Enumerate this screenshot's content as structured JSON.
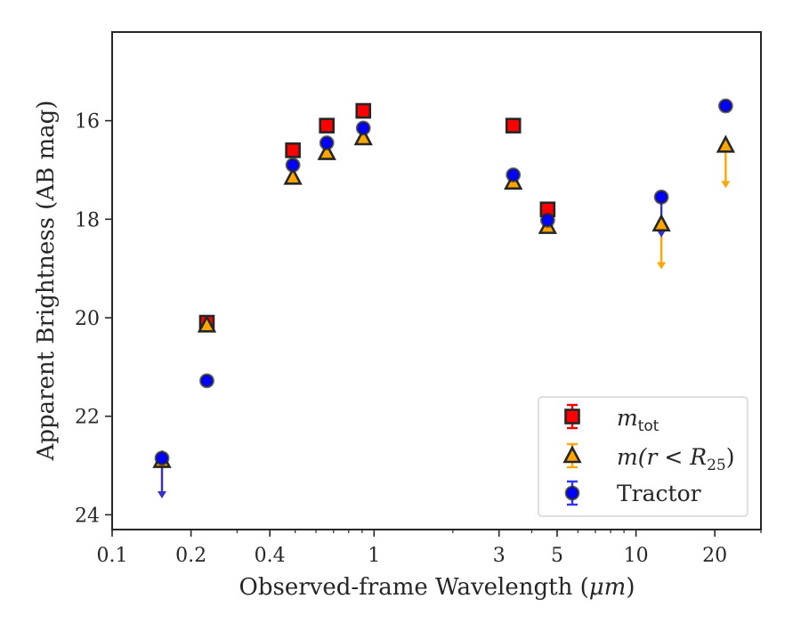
{
  "chart_data": {
    "type": "scatter",
    "xscale": "log",
    "xlim": [
      0.1,
      30
    ],
    "ylim": [
      24.3,
      14.2
    ],
    "y_inverted": true,
    "grid": false,
    "xlabel_main": "Observed-frame Wavelength (",
    "xlabel_unit": "μm",
    "xlabel_close": ")",
    "ylabel": "Apparent Brightness (AB mag)",
    "xticks": [
      {
        "value": 0.1,
        "label": "0.1"
      },
      {
        "value": 0.2,
        "label": "0.2"
      },
      {
        "value": 0.4,
        "label": "0.4"
      },
      {
        "value": 1,
        "label": "1"
      },
      {
        "value": 3,
        "label": "3"
      },
      {
        "value": 5,
        "label": "5"
      },
      {
        "value": 10,
        "label": "10"
      },
      {
        "value": 20,
        "label": "20"
      }
    ],
    "yticks": [
      {
        "value": 16,
        "label": "16"
      },
      {
        "value": 18,
        "label": "18"
      },
      {
        "value": 20,
        "label": "20"
      },
      {
        "value": 22,
        "label": "22"
      },
      {
        "value": 24,
        "label": "24"
      }
    ],
    "legend": {
      "placement": "lower-right",
      "entries": [
        {
          "series": "m_tot",
          "base": "m",
          "sub": "tot",
          "tail": ""
        },
        {
          "series": "m_r25",
          "base": "m(r < R",
          "sub": "25",
          "tail": ")"
        },
        {
          "series": "tractor",
          "base": "Tractor",
          "sub": "",
          "tail": ""
        }
      ]
    },
    "series": [
      {
        "key": "m_tot",
        "marker": "square",
        "color": "#ff0000",
        "edge": "#262626",
        "points": [
          {
            "x": 0.23,
            "y": 20.1
          },
          {
            "x": 0.49,
            "y": 16.6
          },
          {
            "x": 0.66,
            "y": 16.1
          },
          {
            "x": 0.91,
            "y": 15.8
          },
          {
            "x": 3.4,
            "y": 16.1
          },
          {
            "x": 4.6,
            "y": 17.8
          }
        ]
      },
      {
        "key": "m_r25",
        "marker": "triangle",
        "color": "#ffa500",
        "edge": "#262626",
        "points": [
          {
            "x": 0.155,
            "y": 22.9,
            "upper_limit": true,
            "arrow_to": 23.65
          },
          {
            "x": 0.23,
            "y": 20.15
          },
          {
            "x": 0.49,
            "y": 17.15
          },
          {
            "x": 0.66,
            "y": 16.65
          },
          {
            "x": 0.91,
            "y": 16.35
          },
          {
            "x": 3.4,
            "y": 17.25
          },
          {
            "x": 4.6,
            "y": 18.15
          },
          {
            "x": 12.5,
            "y": 18.1,
            "upper_limit": true,
            "arrow_to": 19.0
          },
          {
            "x": 22,
            "y": 16.5,
            "upper_limit": true,
            "arrow_to": 17.35
          }
        ]
      },
      {
        "key": "tractor",
        "marker": "circle",
        "color": "#0000ff",
        "edge": "#262626",
        "points": [
          {
            "x": 0.155,
            "y": 22.85,
            "upper_limit": true,
            "arrow_to": 23.65
          },
          {
            "x": 0.23,
            "y": 21.28
          },
          {
            "x": 0.49,
            "y": 16.9
          },
          {
            "x": 0.66,
            "y": 16.45
          },
          {
            "x": 0.91,
            "y": 16.15
          },
          {
            "x": 3.4,
            "y": 17.1
          },
          {
            "x": 4.6,
            "y": 18.02
          },
          {
            "x": 12.5,
            "y": 17.55,
            "upper_limit": true,
            "arrow_to": 18.35
          },
          {
            "x": 22,
            "y": 15.7
          }
        ]
      }
    ]
  }
}
